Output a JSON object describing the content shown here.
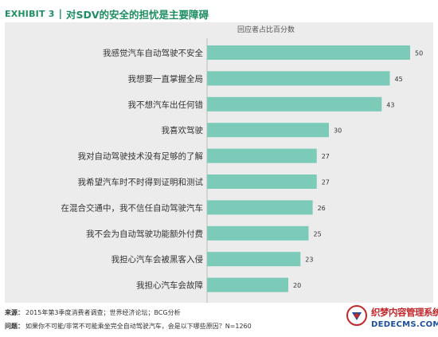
{
  "header": {
    "exhibit": "EXHIBIT 3",
    "separator": "|",
    "title": "对SDV的安全的担忧是主要障碍"
  },
  "chart_data": {
    "type": "bar",
    "orientation": "horizontal",
    "title": "对SDV的安全的担忧是主要障碍",
    "subtitle": "回应者占比百分数",
    "xlabel": "",
    "ylabel": "",
    "xlim": [
      0,
      50
    ],
    "grid": false,
    "categories": [
      "我感觉汽车自动驾驶不安全",
      "我想要一直掌握全局",
      "我不想汽车出任何错",
      "我喜欢驾驶",
      "我对自动驾驶技术没有足够的了解",
      "我希望汽车时不时得到证明和测试",
      "在混合交通中，我不信任自动驾驶汽车",
      "我不会为自动驾驶功能额外付费",
      "我担心汽车会被黑客入侵",
      "我担心汽车会故障"
    ],
    "values": [
      50,
      45,
      43,
      30,
      27,
      27,
      26,
      25,
      23,
      20
    ],
    "bar_color": "#7ccbb8",
    "background_color": "#ececec"
  },
  "footer": {
    "source_label": "来源：",
    "source_text": "2015年第3季度消费者调查；世界经济论坛；BCG分析",
    "question_label": "问题：",
    "question_text": "如果你不可能/非常不可能乘坐完全自动驾驶汽车，会是以下哪些原因？N=1260"
  },
  "watermark": {
    "cn_text": "织梦内容管理系统",
    "url_text": "DEDECMS.COM"
  },
  "colors": {
    "accent": "#1f8f63",
    "bar": "#7ccbb8",
    "panel": "#ececec",
    "watermark_red": "#c0282d",
    "watermark_blue": "#1b4f9a"
  }
}
